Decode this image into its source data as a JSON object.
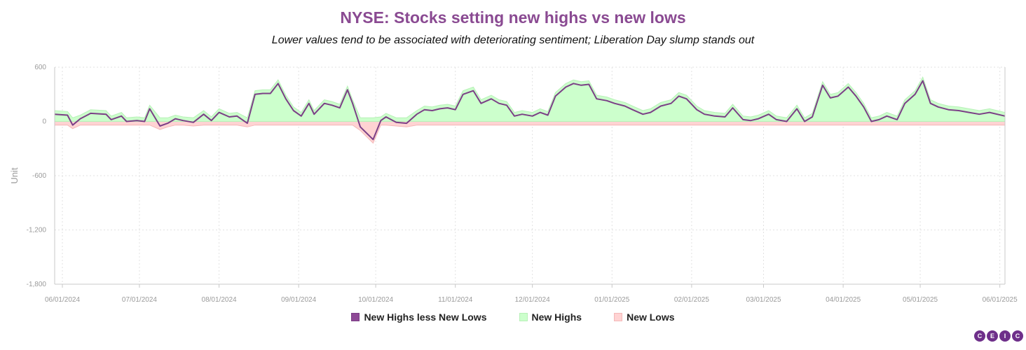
{
  "colors": {
    "title": "#8a4a92",
    "net_line": "#7b3f86",
    "net_swatch": "#8e4a96",
    "highs_fill": "#ccffcc",
    "highs_stroke": "#b8f0b8",
    "lows_fill": "#ffd3d3",
    "lows_stroke": "#f4b8b8",
    "grid": "#e2e2e2",
    "axis": "#c8c8c8",
    "logo": "#6e2f8a"
  },
  "brand": {
    "letters": [
      "C",
      "E",
      "I",
      "C"
    ]
  },
  "chart_data": {
    "type": "area",
    "title": "NYSE: Stocks setting new highs vs new lows",
    "subtitle": "Lower values tend to be associated with deteriorating sentiment; Liberation Day slump stands out",
    "ylabel": "Unit",
    "xlabel": "",
    "ylim": [
      -1800,
      600
    ],
    "yticks": [
      600,
      0,
      -600,
      -1200,
      -1800
    ],
    "ytick_labels": [
      "600",
      "0",
      "-600",
      "-1,200",
      "-1,800"
    ],
    "xlim": [
      "2024-05-29",
      "2025-06-03"
    ],
    "xticks": [
      "2024-06-01",
      "2024-07-01",
      "2024-08-01",
      "2024-09-01",
      "2024-10-01",
      "2024-11-01",
      "2024-12-01",
      "2025-01-01",
      "2025-02-01",
      "2025-03-01",
      "2025-04-01",
      "2025-05-01",
      "2025-06-01"
    ],
    "xtick_labels": [
      "06/01/2024",
      "07/01/2024",
      "08/01/2024",
      "09/01/2024",
      "10/01/2024",
      "11/01/2024",
      "12/01/2024",
      "01/01/2025",
      "02/01/2025",
      "03/01/2025",
      "04/01/2025",
      "05/01/2025",
      "06/01/2025"
    ],
    "grid": true,
    "legend_position": "bottom-center",
    "series": [
      {
        "name": "New Highs less New Lows",
        "style": "line",
        "points": [
          [
            "2024-05-29",
            80
          ],
          [
            "2024-06-03",
            70
          ],
          [
            "2024-06-05",
            -40
          ],
          [
            "2024-06-08",
            30
          ],
          [
            "2024-06-12",
            90
          ],
          [
            "2024-06-18",
            80
          ],
          [
            "2024-06-20",
            20
          ],
          [
            "2024-06-24",
            60
          ],
          [
            "2024-06-26",
            0
          ],
          [
            "2024-06-30",
            10
          ],
          [
            "2024-07-03",
            0
          ],
          [
            "2024-07-05",
            140
          ],
          [
            "2024-07-09",
            -50
          ],
          [
            "2024-07-12",
            -20
          ],
          [
            "2024-07-15",
            30
          ],
          [
            "2024-07-18",
            10
          ],
          [
            "2024-07-22",
            -10
          ],
          [
            "2024-07-26",
            80
          ],
          [
            "2024-07-29",
            10
          ],
          [
            "2024-08-01",
            100
          ],
          [
            "2024-08-05",
            50
          ],
          [
            "2024-08-08",
            60
          ],
          [
            "2024-08-12",
            -20
          ],
          [
            "2024-08-15",
            300
          ],
          [
            "2024-08-18",
            310
          ],
          [
            "2024-08-21",
            310
          ],
          [
            "2024-08-24",
            420
          ],
          [
            "2024-08-27",
            250
          ],
          [
            "2024-08-30",
            120
          ],
          [
            "2024-09-02",
            60
          ],
          [
            "2024-09-05",
            200
          ],
          [
            "2024-09-07",
            80
          ],
          [
            "2024-09-11",
            200
          ],
          [
            "2024-09-14",
            180
          ],
          [
            "2024-09-17",
            150
          ],
          [
            "2024-09-20",
            350
          ],
          [
            "2024-09-22",
            200
          ],
          [
            "2024-09-25",
            -60
          ],
          [
            "2024-09-30",
            -200
          ],
          [
            "2024-10-03",
            10
          ],
          [
            "2024-10-05",
            50
          ],
          [
            "2024-10-09",
            -10
          ],
          [
            "2024-10-13",
            -20
          ],
          [
            "2024-10-17",
            80
          ],
          [
            "2024-10-20",
            130
          ],
          [
            "2024-10-23",
            120
          ],
          [
            "2024-10-26",
            140
          ],
          [
            "2024-10-29",
            150
          ],
          [
            "2024-11-01",
            130
          ],
          [
            "2024-11-04",
            300
          ],
          [
            "2024-11-08",
            340
          ],
          [
            "2024-11-11",
            200
          ],
          [
            "2024-11-15",
            250
          ],
          [
            "2024-11-18",
            200
          ],
          [
            "2024-11-21",
            180
          ],
          [
            "2024-11-24",
            60
          ],
          [
            "2024-11-27",
            80
          ],
          [
            "2024-12-01",
            60
          ],
          [
            "2024-12-04",
            100
          ],
          [
            "2024-12-07",
            70
          ],
          [
            "2024-12-10",
            280
          ],
          [
            "2024-12-14",
            380
          ],
          [
            "2024-12-17",
            420
          ],
          [
            "2024-12-20",
            400
          ],
          [
            "2024-12-23",
            410
          ],
          [
            "2024-12-26",
            250
          ],
          [
            "2024-12-30",
            230
          ],
          [
            "2025-01-02",
            200
          ],
          [
            "2025-01-06",
            170
          ],
          [
            "2025-01-09",
            130
          ],
          [
            "2025-01-13",
            80
          ],
          [
            "2025-01-16",
            100
          ],
          [
            "2025-01-20",
            170
          ],
          [
            "2025-01-24",
            200
          ],
          [
            "2025-01-27",
            280
          ],
          [
            "2025-01-30",
            250
          ],
          [
            "2025-02-03",
            130
          ],
          [
            "2025-02-06",
            80
          ],
          [
            "2025-02-10",
            60
          ],
          [
            "2025-02-14",
            50
          ],
          [
            "2025-02-17",
            150
          ],
          [
            "2025-02-21",
            20
          ],
          [
            "2025-02-24",
            10
          ],
          [
            "2025-02-27",
            30
          ],
          [
            "2025-03-03",
            80
          ],
          [
            "2025-03-06",
            20
          ],
          [
            "2025-03-10",
            0
          ],
          [
            "2025-03-14",
            140
          ],
          [
            "2025-03-17",
            0
          ],
          [
            "2025-03-20",
            50
          ],
          [
            "2025-03-24",
            400
          ],
          [
            "2025-03-27",
            260
          ],
          [
            "2025-03-30",
            280
          ],
          [
            "2025-04-03",
            380
          ],
          [
            "2025-04-06",
            280
          ],
          [
            "2025-04-09",
            160
          ],
          [
            "2025-04-12",
            0
          ],
          [
            "2025-04-15",
            20
          ],
          [
            "2025-04-18",
            60
          ],
          [
            "2025-04-22",
            20
          ],
          [
            "2025-04-25",
            200
          ],
          [
            "2025-04-29",
            300
          ],
          [
            "2025-05-02",
            450
          ],
          [
            "2025-05-05",
            200
          ],
          [
            "2025-05-08",
            160
          ],
          [
            "2025-05-12",
            130
          ],
          [
            "2025-05-16",
            120
          ],
          [
            "2025-05-20",
            100
          ],
          [
            "2025-05-24",
            80
          ],
          [
            "2025-05-28",
            100
          ],
          [
            "2025-06-03",
            60
          ]
        ]
      },
      {
        "name": "New Highs",
        "style": "area"
      },
      {
        "name": "New Lows",
        "style": "area"
      }
    ],
    "annotation": ""
  }
}
